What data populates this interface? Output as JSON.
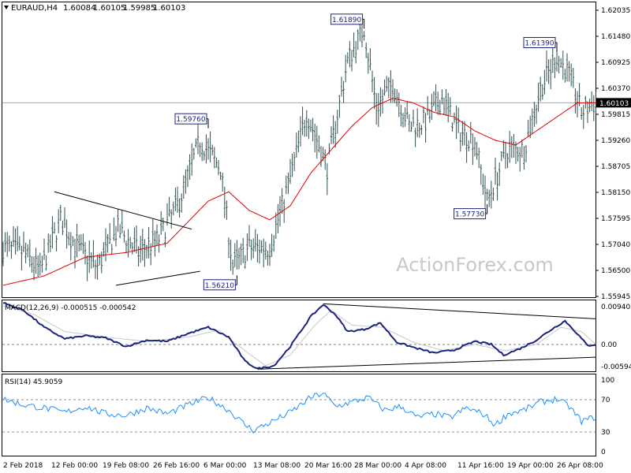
{
  "chart_data": [
    {
      "type": "ohlc",
      "title": "EURAUD,H4",
      "header_values": [
        "1.60084",
        "1.60105",
        "1.59985",
        "1.60103"
      ],
      "ylim": [
        1.55945,
        1.6225
      ],
      "y_ticks": [
        "1.62035",
        "1.61480",
        "1.60925",
        "1.60370",
        "1.59815",
        "1.59260",
        "1.58705",
        "1.58150",
        "1.57595",
        "1.57040",
        "1.56500",
        "1.55945"
      ],
      "current_price": "1.60103",
      "x_tick_labels": [
        "2 Feb 2018",
        "12 Feb 00:00",
        "19 Feb 08:00",
        "26 Feb 16:00",
        "6 Mar 00:00",
        "13 Mar 08:00",
        "20 Mar 16:00",
        "28 Mar 00:00",
        "4 Apr 08:00",
        "11 Apr 16:00",
        "19 Apr 00:00",
        "26 Apr 08:00"
      ],
      "annotations": [
        {
          "label": "1.61890",
          "value": 1.6189
        },
        {
          "label": "1.61390",
          "value": 1.6139
        },
        {
          "label": "1.59760",
          "value": 1.5976
        },
        {
          "label": "1.57730",
          "value": 1.5773
        },
        {
          "label": "1.56210",
          "value": 1.5621
        }
      ],
      "anchors": [
        {
          "i": 0,
          "v": 1.57
        },
        {
          "i": 10,
          "v": 1.569
        },
        {
          "i": 18,
          "v": 1.565
        },
        {
          "i": 28,
          "v": 1.576
        },
        {
          "i": 36,
          "v": 1.57
        },
        {
          "i": 46,
          "v": 1.566
        },
        {
          "i": 56,
          "v": 1.574
        },
        {
          "i": 66,
          "v": 1.569
        },
        {
          "i": 76,
          "v": 1.572
        },
        {
          "i": 86,
          "v": 1.58
        },
        {
          "i": 96,
          "v": 1.593
        },
        {
          "i": 106,
          "v": 1.587
        },
        {
          "i": 112,
          "v": 1.566
        },
        {
          "i": 120,
          "v": 1.57
        },
        {
          "i": 130,
          "v": 1.57
        },
        {
          "i": 140,
          "v": 1.585
        },
        {
          "i": 148,
          "v": 1.599
        },
        {
          "i": 158,
          "v": 1.587
        },
        {
          "i": 168,
          "v": 1.61
        },
        {
          "i": 176,
          "v": 1.617
        },
        {
          "i": 182,
          "v": 1.6
        },
        {
          "i": 190,
          "v": 1.605
        },
        {
          "i": 198,
          "v": 1.596
        },
        {
          "i": 206,
          "v": 1.597
        },
        {
          "i": 214,
          "v": 1.602
        },
        {
          "i": 222,
          "v": 1.595
        },
        {
          "i": 230,
          "v": 1.593
        },
        {
          "i": 236,
          "v": 1.58
        },
        {
          "i": 246,
          "v": 1.591
        },
        {
          "i": 254,
          "v": 1.591
        },
        {
          "i": 262,
          "v": 1.604
        },
        {
          "i": 270,
          "v": 1.611
        },
        {
          "i": 276,
          "v": 1.607
        },
        {
          "i": 282,
          "v": 1.599
        },
        {
          "i": 289,
          "v": 1.601
        }
      ],
      "moving_average_anchors": [
        {
          "i": 0,
          "v": 1.562
        },
        {
          "i": 20,
          "v": 1.564
        },
        {
          "i": 40,
          "v": 1.568
        },
        {
          "i": 60,
          "v": 1.569
        },
        {
          "i": 80,
          "v": 1.571
        },
        {
          "i": 100,
          "v": 1.58
        },
        {
          "i": 110,
          "v": 1.582
        },
        {
          "i": 120,
          "v": 1.578
        },
        {
          "i": 130,
          "v": 1.576
        },
        {
          "i": 140,
          "v": 1.579
        },
        {
          "i": 150,
          "v": 1.586
        },
        {
          "i": 160,
          "v": 1.591
        },
        {
          "i": 170,
          "v": 1.596
        },
        {
          "i": 180,
          "v": 1.6
        },
        {
          "i": 190,
          "v": 1.602
        },
        {
          "i": 200,
          "v": 1.601
        },
        {
          "i": 210,
          "v": 1.599
        },
        {
          "i": 220,
          "v": 1.598
        },
        {
          "i": 230,
          "v": 1.595
        },
        {
          "i": 240,
          "v": 1.593
        },
        {
          "i": 250,
          "v": 1.592
        },
        {
          "i": 260,
          "v": 1.595
        },
        {
          "i": 270,
          "v": 1.598
        },
        {
          "i": 280,
          "v": 1.601
        },
        {
          "i": 289,
          "v": 1.601
        }
      ],
      "trendlines": [
        {
          "i1": 25,
          "v1": 1.582,
          "i2": 92,
          "v2": 1.574
        },
        {
          "i1": 55,
          "v1": 1.562,
          "i2": 96,
          "v2": 1.565
        }
      ],
      "watermark": "ActionForex.com"
    },
    {
      "type": "line",
      "title": "MACD(12,26,9) -0.000515 -0.000542",
      "ylim": [
        -0.0068,
        0.0098
      ],
      "y_ticks": [
        "0.009407",
        "0.00",
        "-0.00594"
      ],
      "series": [
        {
          "color": "#1a237e",
          "anchors": [
            {
              "i": 0,
              "v": 0.0092
            },
            {
              "i": 10,
              "v": 0.0075
            },
            {
              "i": 20,
              "v": 0.0035
            },
            {
              "i": 30,
              "v": 0.0008
            },
            {
              "i": 40,
              "v": 0.0015
            },
            {
              "i": 50,
              "v": 0.001
            },
            {
              "i": 60,
              "v": -0.001
            },
            {
              "i": 70,
              "v": 0.0005
            },
            {
              "i": 80,
              "v": 0.0002
            },
            {
              "i": 90,
              "v": 0.002
            },
            {
              "i": 100,
              "v": 0.0035
            },
            {
              "i": 110,
              "v": 0.0012
            },
            {
              "i": 118,
              "v": -0.0045
            },
            {
              "i": 124,
              "v": -0.0062
            },
            {
              "i": 132,
              "v": -0.0055
            },
            {
              "i": 140,
              "v": -0.001
            },
            {
              "i": 150,
              "v": 0.006
            },
            {
              "i": 156,
              "v": 0.0088
            },
            {
              "i": 162,
              "v": 0.0065
            },
            {
              "i": 168,
              "v": 0.0025
            },
            {
              "i": 176,
              "v": 0.003
            },
            {
              "i": 184,
              "v": 0.0045
            },
            {
              "i": 192,
              "v": 0.0
            },
            {
              "i": 200,
              "v": -0.0012
            },
            {
              "i": 210,
              "v": -0.0025
            },
            {
              "i": 220,
              "v": -0.0018
            },
            {
              "i": 230,
              "v": 0.0002
            },
            {
              "i": 238,
              "v": -0.0005
            },
            {
              "i": 244,
              "v": -0.003
            },
            {
              "i": 252,
              "v": -0.0015
            },
            {
              "i": 260,
              "v": 0.0005
            },
            {
              "i": 268,
              "v": 0.0032
            },
            {
              "i": 274,
              "v": 0.005
            },
            {
              "i": 280,
              "v": 0.002
            },
            {
              "i": 285,
              "v": -0.0008
            },
            {
              "i": 289,
              "v": -0.0005
            }
          ]
        },
        {
          "color": "#c8c8c8",
          "anchors": [
            {
              "i": 0,
              "v": 0.0085
            },
            {
              "i": 15,
              "v": 0.0065
            },
            {
              "i": 30,
              "v": 0.0025
            },
            {
              "i": 50,
              "v": 0.0012
            },
            {
              "i": 70,
              "v": 0.0002
            },
            {
              "i": 90,
              "v": 0.0012
            },
            {
              "i": 105,
              "v": 0.0028
            },
            {
              "i": 118,
              "v": -0.002
            },
            {
              "i": 128,
              "v": -0.0055
            },
            {
              "i": 140,
              "v": -0.003
            },
            {
              "i": 152,
              "v": 0.004
            },
            {
              "i": 160,
              "v": 0.0075
            },
            {
              "i": 170,
              "v": 0.004
            },
            {
              "i": 185,
              "v": 0.0035
            },
            {
              "i": 200,
              "v": 0.0
            },
            {
              "i": 215,
              "v": -0.002
            },
            {
              "i": 230,
              "v": -0.0005
            },
            {
              "i": 245,
              "v": -0.002
            },
            {
              "i": 260,
              "v": -0.0005
            },
            {
              "i": 272,
              "v": 0.0035
            },
            {
              "i": 282,
              "v": 0.0025
            },
            {
              "i": 289,
              "v": -0.0005
            }
          ]
        }
      ],
      "trendlines": [
        {
          "i1": 156,
          "v1": 0.009,
          "i2": 289,
          "v2": 0.0055
        },
        {
          "i1": 124,
          "v1": -0.0063,
          "i2": 289,
          "v2": -0.0035
        }
      ]
    },
    {
      "type": "line",
      "title": "RSI(14) 45.9059",
      "ylim": [
        0,
        100
      ],
      "y_ticks": [
        "100",
        "70",
        "30",
        "0"
      ],
      "series": [
        {
          "color": "#1e90ff",
          "anchors": [
            {
              "i": 0,
              "v": 70
            },
            {
              "i": 10,
              "v": 62
            },
            {
              "i": 20,
              "v": 58
            },
            {
              "i": 30,
              "v": 52
            },
            {
              "i": 40,
              "v": 60
            },
            {
              "i": 50,
              "v": 50
            },
            {
              "i": 60,
              "v": 48
            },
            {
              "i": 70,
              "v": 58
            },
            {
              "i": 80,
              "v": 50
            },
            {
              "i": 90,
              "v": 62
            },
            {
              "i": 100,
              "v": 72
            },
            {
              "i": 110,
              "v": 55
            },
            {
              "i": 118,
              "v": 35
            },
            {
              "i": 122,
              "v": 28
            },
            {
              "i": 130,
              "v": 38
            },
            {
              "i": 140,
              "v": 52
            },
            {
              "i": 150,
              "v": 72
            },
            {
              "i": 156,
              "v": 78
            },
            {
              "i": 162,
              "v": 60
            },
            {
              "i": 170,
              "v": 66
            },
            {
              "i": 178,
              "v": 72
            },
            {
              "i": 186,
              "v": 55
            },
            {
              "i": 194,
              "v": 60
            },
            {
              "i": 202,
              "v": 45
            },
            {
              "i": 210,
              "v": 50
            },
            {
              "i": 218,
              "v": 45
            },
            {
              "i": 226,
              "v": 58
            },
            {
              "i": 234,
              "v": 50
            },
            {
              "i": 240,
              "v": 35
            },
            {
              "i": 246,
              "v": 50
            },
            {
              "i": 254,
              "v": 55
            },
            {
              "i": 262,
              "v": 66
            },
            {
              "i": 270,
              "v": 70
            },
            {
              "i": 276,
              "v": 60
            },
            {
              "i": 282,
              "v": 40
            },
            {
              "i": 289,
              "v": 46
            }
          ]
        }
      ]
    }
  ]
}
